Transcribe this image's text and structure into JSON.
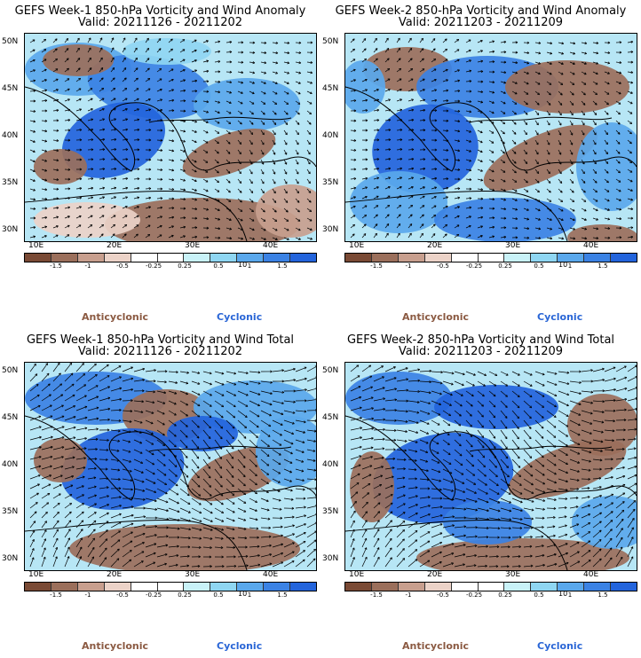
{
  "colors": {
    "c1": "#7a4a35",
    "c2": "#9b6f5b",
    "c3": "#c89f8e",
    "c4": "#ecd3c8",
    "c5": "#ffffff",
    "c6": "#ffffff",
    "c7": "#c9f2f8",
    "c8": "#8fd6f2",
    "c9": "#5aa8ec",
    "c10": "#3b82e4",
    "c11": "#2364dc",
    "anticyclonic": "#8b5a42",
    "cyclonic": "#2a66d6"
  },
  "lat_labels": [
    "50N",
    "45N",
    "40N",
    "35N",
    "30N"
  ],
  "lon_labels": [
    "10E",
    "20E",
    "30E",
    "40E"
  ],
  "colorbar": {
    "ticks": [
      "-1.5",
      "-1",
      "-0.5",
      "-0.25",
      "0.25",
      "0.5",
      "1",
      "1.5"
    ],
    "unit": "10"
  },
  "legend": {
    "anticyclonic": "Anticyclonic",
    "cyclonic": "Cyclonic"
  },
  "panels": [
    {
      "title": "GEFS Week-1 850-hPa Vorticity and Wind Anomaly",
      "valid": "Valid: 20211126 - 20211202"
    },
    {
      "title": "GEFS Week-2 850-hPa Vorticity and Wind Anomaly",
      "valid": "Valid: 20211203 - 20211209"
    },
    {
      "title": "GEFS Week-1 850-hPa Vorticity and Wind Total",
      "valid": "Valid: 20211126 - 20211202"
    },
    {
      "title": "GEFS Week-2 850-hPa Vorticity and Wind Total",
      "valid": "Valid: 20211203 - 20211209"
    }
  ]
}
